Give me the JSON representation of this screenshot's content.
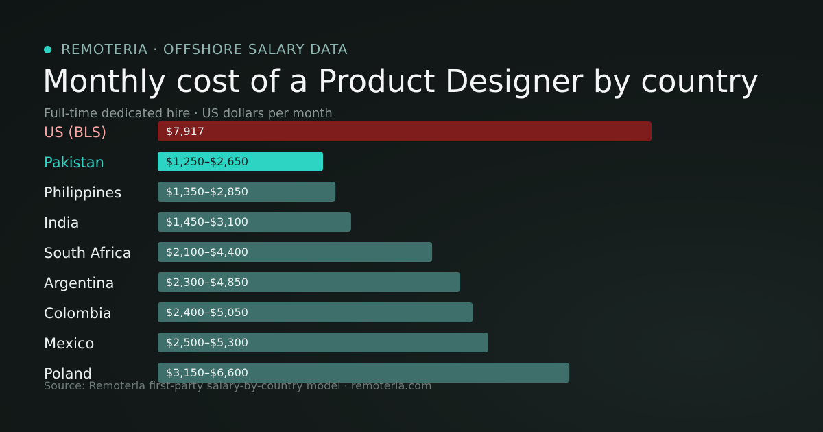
{
  "header": {
    "brand": "REMOTERIA · OFFSHORE SALARY DATA",
    "title": "Monthly cost of a Product Designer by country",
    "subtitle": "Full-time dedicated hire · US dollars per month",
    "source": "Source: Remoteria first-party salary-by-country model · remoteria.com"
  },
  "colors": {
    "accent": "#2dd4c4",
    "benchmark": "#7f1d1d",
    "benchmark_label": "#fca5a5",
    "bar": "#3e6f6a"
  },
  "chart_data": {
    "type": "bar",
    "orientation": "horizontal",
    "unit": "US dollars per month",
    "xlim": [
      0,
      8000
    ],
    "grid": false,
    "categories": [
      "US (BLS)",
      "Pakistan",
      "Philippines",
      "India",
      "South Africa",
      "Argentina",
      "Colombia",
      "Mexico",
      "Poland"
    ],
    "low": [
      null,
      1250,
      1350,
      1450,
      2100,
      2300,
      2400,
      2500,
      3150
    ],
    "values": [
      7917,
      2650,
      2850,
      3100,
      4400,
      4850,
      5050,
      5300,
      6600
    ],
    "labels": [
      "$7,917",
      "$1,250–$2,650",
      "$1,350–$2,850",
      "$1,450–$3,100",
      "$2,100–$4,400",
      "$2,300–$4,850",
      "$2,400–$5,050",
      "$2,500–$5,300",
      "$3,150–$6,600"
    ],
    "highlight": {
      "US (BLS)": "benchmark",
      "Pakistan": "accent"
    }
  }
}
